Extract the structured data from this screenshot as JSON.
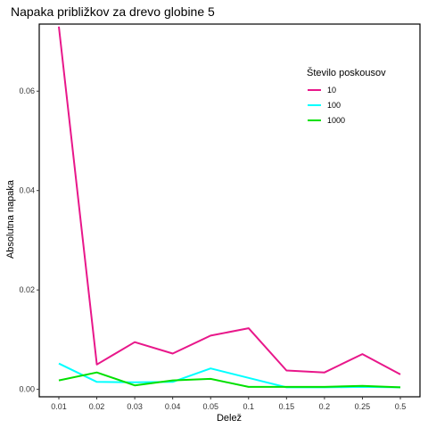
{
  "chart_data": {
    "type": "line",
    "title": "Napaka približkov za drevo globine 5",
    "xlabel": "Delež",
    "ylabel": "Absolutna napaka",
    "categories": [
      "0.01",
      "0.02",
      "0.03",
      "0.04",
      "0.05",
      "0.1",
      "0.15",
      "0.2",
      "0.25",
      "0.5"
    ],
    "ylim": [
      -0.0015,
      0.0735
    ],
    "yticks": [
      "0.00",
      "0.02",
      "0.04",
      "0.06"
    ],
    "ytick_values": [
      0.0,
      0.02,
      0.04,
      0.06
    ],
    "grid": false,
    "legend": {
      "title": "Število poskousov",
      "placement": "top-right"
    },
    "series": [
      {
        "name": "10",
        "color": "#e8178a",
        "values": [
          0.073,
          0.005,
          0.0095,
          0.0072,
          0.0108,
          0.0123,
          0.0038,
          0.0034,
          0.0071,
          0.003
        ]
      },
      {
        "name": "100",
        "color": "#00ffff",
        "values": [
          0.0052,
          0.0015,
          0.0014,
          0.0015,
          0.0042,
          0.0023,
          0.0004,
          0.0004,
          0.0005,
          0.0004
        ]
      },
      {
        "name": "1000",
        "color": "#00e000",
        "values": [
          0.0018,
          0.0034,
          0.0008,
          0.0018,
          0.0021,
          0.0005,
          0.0005,
          0.0005,
          0.0007,
          0.0004
        ]
      }
    ]
  }
}
